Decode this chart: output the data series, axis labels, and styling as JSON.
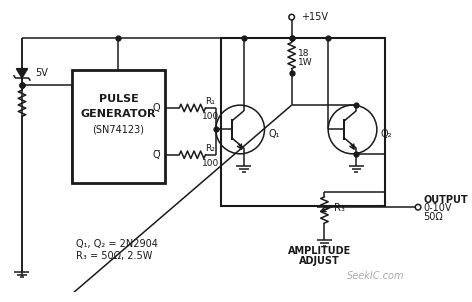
{
  "bg_color": "#ffffff",
  "line_color": "#1a1a1a",
  "watermark": "SeekIC.com",
  "components": {
    "ic_text1": "PULSE",
    "ic_text2": "GENERATOR",
    "ic_text3": "(SN74123)",
    "r1_label": "R₁",
    "r1_val": "100",
    "r2_label": "R₂",
    "r2_val": "100",
    "r3_label": "R₃",
    "q1_label": "Q₁",
    "q2_label": "Q₂",
    "vcc_label": "+15V",
    "v5_label": "5V",
    "r18_label": "18",
    "r18w_label": "1W",
    "output_label1": "OUTPUT",
    "output_label2": "0-10V",
    "output_label3": "50Ω",
    "amp_adj_label1": "AMPLITUDE",
    "amp_adj_label2": "ADJUST",
    "q_label": "Q",
    "qbar_label": "Q̅",
    "bottom_label1": "Q₁, Q₂ = 2N2904",
    "bottom_label2": "R₃ = 50Ω, 2.5W"
  }
}
